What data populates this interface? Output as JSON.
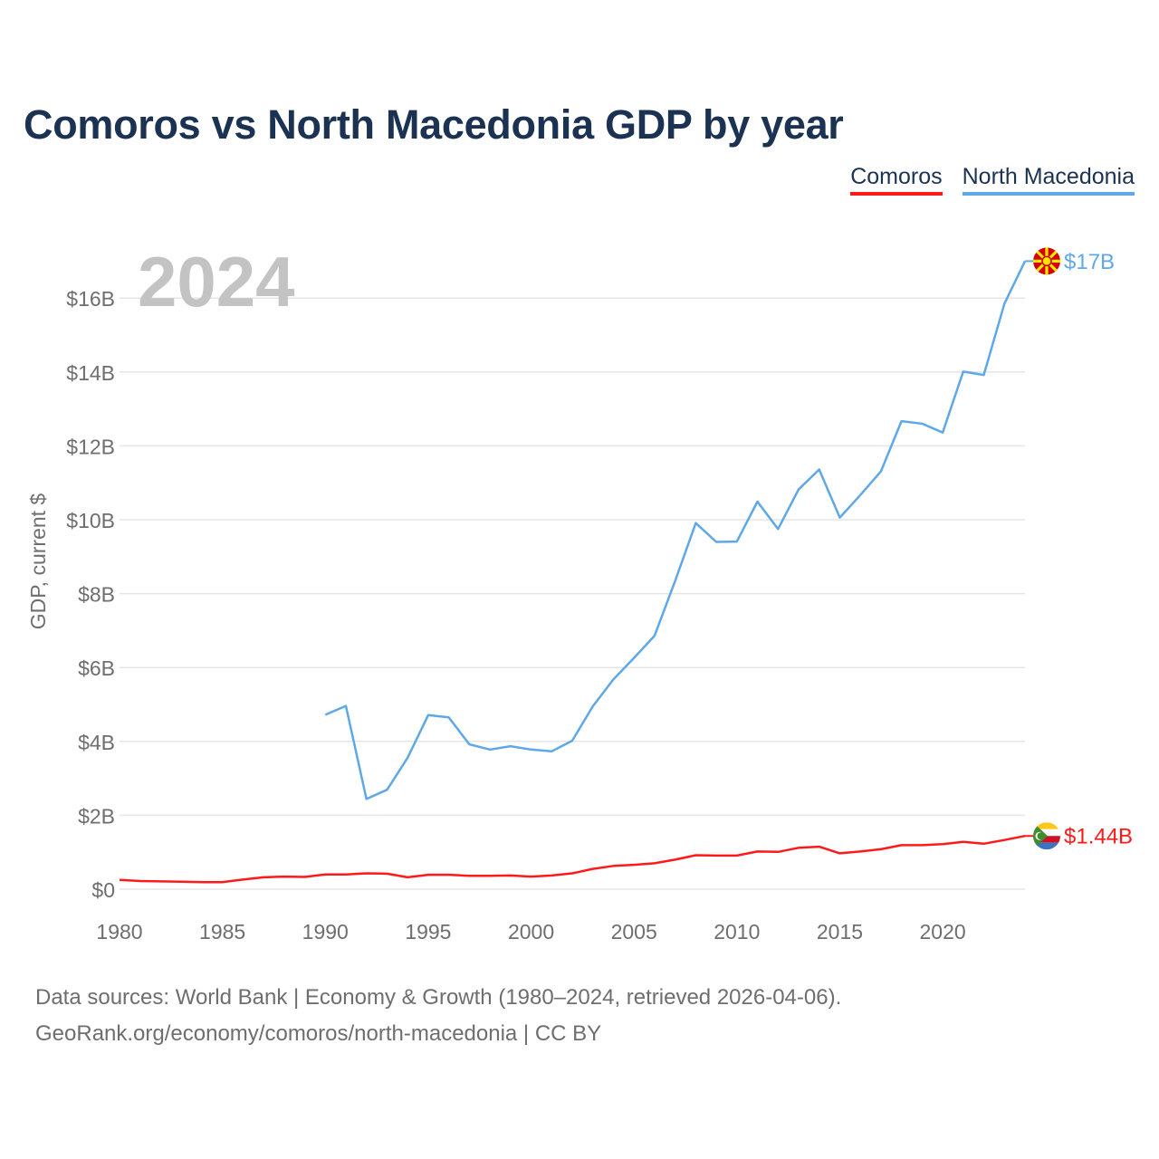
{
  "title": "Comoros vs North Macedonia GDP by year",
  "legend": {
    "comoros": "Comoros",
    "macedonia": "North Macedonia"
  },
  "year_display": "2024",
  "footer": {
    "sources": "Data sources: World Bank | Economy & Growth (1980–2024, retrieved 2026-04-06).",
    "credit": "GeoRank.org/economy/comoros/north-macedonia | CC BY"
  },
  "colors": {
    "comoros": "#ff1a1a",
    "macedonia": "#5fa8e8",
    "grid": "#e6e6e6",
    "tick": "#6e6e6e",
    "year": "#c3c3c3"
  },
  "chart_data": {
    "type": "line",
    "title": "Comoros vs North Macedonia GDP by year",
    "xlabel": "",
    "ylabel": "GDP, current $",
    "xlim": [
      1980,
      2024
    ],
    "ylim": [
      0,
      17.5
    ],
    "x_ticks": [
      1980,
      1985,
      1990,
      1995,
      2000,
      2005,
      2010,
      2015,
      2020
    ],
    "x_tick_labels": [
      "1980",
      "1985",
      "1990",
      "1995",
      "2000",
      "2005",
      "2010",
      "2015",
      "2020"
    ],
    "y_ticks": [
      0,
      2,
      4,
      6,
      8,
      10,
      12,
      14,
      16
    ],
    "y_tick_labels": [
      "$0",
      "$2B",
      "$4B",
      "$6B",
      "$8B",
      "$10B",
      "$12B",
      "$14B",
      "$16B"
    ],
    "grid": true,
    "legend_position": "top-right",
    "units": "billions of current US$",
    "series": [
      {
        "name": "Comoros",
        "key": "comoros",
        "end_label": "$1.44B",
        "x": [
          1980,
          1981,
          1982,
          1983,
          1984,
          1985,
          1986,
          1987,
          1988,
          1989,
          1990,
          1991,
          1992,
          1993,
          1994,
          1995,
          1996,
          1997,
          1998,
          1999,
          2000,
          2001,
          2002,
          2003,
          2004,
          2005,
          2006,
          2007,
          2008,
          2009,
          2010,
          2011,
          2012,
          2013,
          2014,
          2015,
          2016,
          2017,
          2018,
          2019,
          2020,
          2021,
          2022,
          2023,
          2024
        ],
        "values": [
          0.25,
          0.22,
          0.21,
          0.2,
          0.19,
          0.19,
          0.26,
          0.32,
          0.34,
          0.33,
          0.4,
          0.4,
          0.43,
          0.42,
          0.32,
          0.39,
          0.39,
          0.36,
          0.36,
          0.37,
          0.34,
          0.37,
          0.43,
          0.55,
          0.63,
          0.66,
          0.7,
          0.8,
          0.92,
          0.91,
          0.91,
          1.02,
          1.01,
          1.12,
          1.15,
          0.97,
          1.02,
          1.08,
          1.19,
          1.19,
          1.22,
          1.28,
          1.23,
          1.33,
          1.44
        ]
      },
      {
        "name": "North Macedonia",
        "key": "macedonia",
        "end_label": "$17B",
        "x": [
          1990,
          1991,
          1992,
          1993,
          1994,
          1995,
          1996,
          1997,
          1998,
          1999,
          2000,
          2001,
          2002,
          2003,
          2004,
          2005,
          2006,
          2007,
          2008,
          2009,
          2010,
          2011,
          2012,
          2013,
          2014,
          2015,
          2016,
          2017,
          2018,
          2019,
          2020,
          2021,
          2022,
          2023,
          2024
        ],
        "values": [
          4.72,
          4.96,
          2.44,
          2.69,
          3.56,
          4.71,
          4.65,
          3.92,
          3.78,
          3.87,
          3.78,
          3.73,
          4.02,
          4.95,
          5.68,
          6.26,
          6.86,
          8.34,
          9.91,
          9.4,
          9.41,
          10.49,
          9.75,
          10.82,
          11.36,
          10.06,
          10.67,
          11.31,
          12.67,
          12.6,
          12.36,
          14.01,
          13.92,
          15.85,
          17.0
        ]
      }
    ]
  }
}
